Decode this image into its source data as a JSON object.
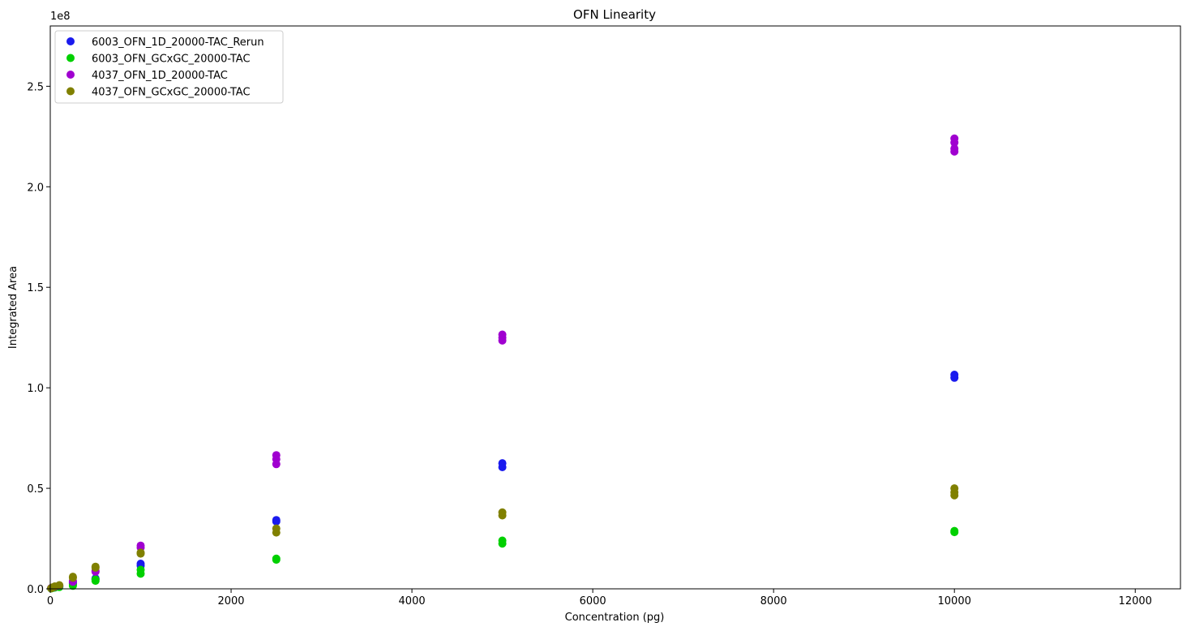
{
  "chart_data": {
    "type": "scatter",
    "title": "OFN Linearity",
    "xlabel": "Concentration (pg)",
    "ylabel": "Integrated Area",
    "y_offset_label": "1e8",
    "xlim": [
      0,
      12500
    ],
    "ylim": [
      0,
      280000000
    ],
    "x_ticks": [
      0,
      2000,
      4000,
      6000,
      8000,
      10000,
      12000
    ],
    "x_tick_labels": [
      "0",
      "2000",
      "4000",
      "6000",
      "8000",
      "10000",
      "12000"
    ],
    "y_ticks": [
      0,
      50000000,
      100000000,
      150000000,
      200000000,
      250000000
    ],
    "y_tick_labels": [
      "0.0",
      "0.5",
      "1.0",
      "1.5",
      "2.0",
      "2.5"
    ],
    "grid": false,
    "legend_position": "top-left",
    "series": [
      {
        "name": "6003_OFN_1D_20000-TAC_Rerun",
        "color": "#1a1aee",
        "points": [
          [
            10,
            300000
          ],
          [
            25,
            500000
          ],
          [
            50,
            900000
          ],
          [
            100,
            1300000
          ],
          [
            250,
            2500000
          ],
          [
            250,
            3000000
          ],
          [
            500,
            4800000
          ],
          [
            500,
            5200000
          ],
          [
            1000,
            11500000
          ],
          [
            1000,
            12500000
          ],
          [
            2500,
            33500000
          ],
          [
            2500,
            34200000
          ],
          [
            5000,
            60500000
          ],
          [
            5000,
            62500000
          ],
          [
            10000,
            105000000
          ],
          [
            10000,
            106500000
          ]
        ]
      },
      {
        "name": "6003_OFN_GCxGC_20000-TAC",
        "color": "#00d000",
        "points": [
          [
            10,
            200000
          ],
          [
            25,
            400000
          ],
          [
            50,
            600000
          ],
          [
            100,
            900000
          ],
          [
            250,
            1500000
          ],
          [
            250,
            2000000
          ],
          [
            500,
            4000000
          ],
          [
            500,
            4700000
          ],
          [
            1000,
            7500000
          ],
          [
            1000,
            9500000
          ],
          [
            2500,
            14500000
          ],
          [
            2500,
            15000000
          ],
          [
            5000,
            22500000
          ],
          [
            5000,
            24000000
          ],
          [
            10000,
            28200000
          ],
          [
            10000,
            28800000
          ]
        ]
      },
      {
        "name": "4037_OFN_1D_20000-TAC",
        "color": "#a000d0",
        "points": [
          [
            10,
            400000
          ],
          [
            25,
            600000
          ],
          [
            50,
            1000000
          ],
          [
            100,
            1600000
          ],
          [
            250,
            3500000
          ],
          [
            250,
            4000000
          ],
          [
            500,
            8500000
          ],
          [
            500,
            9000000
          ],
          [
            1000,
            20500000
          ],
          [
            1000,
            21500000
          ],
          [
            2500,
            62000000
          ],
          [
            2500,
            64500000
          ],
          [
            2500,
            66500000
          ],
          [
            5000,
            123500000
          ],
          [
            5000,
            125000000
          ],
          [
            5000,
            126500000
          ],
          [
            10000,
            217500000
          ],
          [
            10000,
            219000000
          ],
          [
            10000,
            222000000
          ],
          [
            10000,
            224000000
          ]
        ]
      },
      {
        "name": "4037_OFN_GCxGC_20000-TAC",
        "color": "#808000",
        "points": [
          [
            10,
            300000
          ],
          [
            25,
            700000
          ],
          [
            50,
            1200000
          ],
          [
            100,
            1800000
          ],
          [
            250,
            5500000
          ],
          [
            250,
            6000000
          ],
          [
            500,
            10500000
          ],
          [
            500,
            11000000
          ],
          [
            1000,
            17500000
          ],
          [
            1000,
            18000000
          ],
          [
            2500,
            28000000
          ],
          [
            2500,
            30000000
          ],
          [
            5000,
            36500000
          ],
          [
            5000,
            38000000
          ],
          [
            10000,
            46500000
          ],
          [
            10000,
            48000000
          ],
          [
            10000,
            50000000
          ]
        ]
      }
    ]
  }
}
